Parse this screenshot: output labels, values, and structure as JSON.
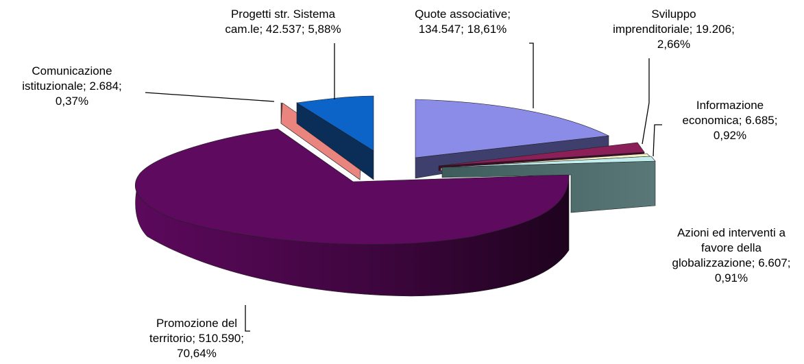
{
  "chart_data": {
    "type": "pie",
    "style": "3d-exploded",
    "legend": "none",
    "slices": [
      {
        "category": "Quote associative",
        "value": 134547,
        "percent": "18,61%",
        "value_label": "134.547",
        "color": "#8b8ce8",
        "side_color": "#3f3f6e"
      },
      {
        "category": "Sviluppo imprenditoriale",
        "value": 19206,
        "percent": "2,66%",
        "value_label": "19.206",
        "color": "#8b1f58",
        "side_color": "#3d0c27"
      },
      {
        "category": "Informazione economica",
        "value": 6685,
        "percent": "0,92%",
        "value_label": "6.685",
        "color": "#f4f1c4",
        "side_color": "#a8a57e"
      },
      {
        "category": "Azioni ed interventi a favore della globalizzazione",
        "value": 6607,
        "percent": "0,91%",
        "value_label": "6.607",
        "color": "#c2eeee",
        "side_color": "#4a6b6b"
      },
      {
        "category": "Promozione del territorio",
        "value": 510590,
        "percent": "70,64%",
        "value_label": "510.590",
        "color": "#5e0a5e",
        "side_color": "#4a0a4a"
      },
      {
        "category": "Comunicazione istituzionale",
        "value": 2684,
        "percent": "0,37%",
        "value_label": "2.684",
        "color": "#e9857e",
        "side_color": "#6b3a30"
      },
      {
        "category": "Progetti str. Sistema cam.le",
        "value": 42537,
        "percent": "5,88%",
        "value_label": "42.537",
        "color": "#0c63c8",
        "side_color": "#0a2e58"
      }
    ],
    "labels": {
      "quote": [
        "Quote associative;",
        "134.547; 18,61%"
      ],
      "sviluppo": [
        "Sviluppo",
        "imprenditoriale; 19.206;",
        "2,66%"
      ],
      "informazione": [
        "Informazione",
        "economica; 6.685;",
        "0,92%"
      ],
      "azioni": [
        "Azioni ed interventi a",
        "favore della",
        "globalizzazione; 6.607;",
        "0,91%"
      ],
      "promozione": [
        "Promozione del",
        "territorio; 510.590;",
        "70,64%"
      ],
      "comunicazione": [
        "Comunicazione",
        "istituzionale; 2.684;",
        "0,37%"
      ],
      "progetti": [
        "Progetti str. Sistema",
        "cam.le; 42.537; 5,88%"
      ]
    }
  }
}
